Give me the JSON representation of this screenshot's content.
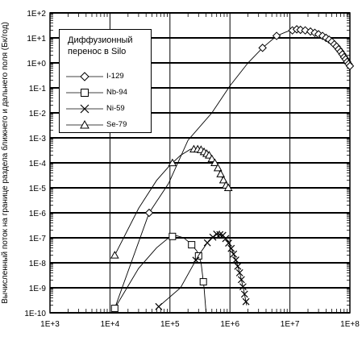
{
  "chart_data": {
    "type": "line",
    "title": "",
    "xlabel": "",
    "ylabel": "Вычисленный поток на границе раздела ближнего и дальнего поля (Бк/год)",
    "xscale": "log",
    "yscale": "log",
    "xlim": [
      1000,
      100000000
    ],
    "ylim": [
      1e-10,
      100
    ],
    "x_ticks": [
      "1E+3",
      "1E+4",
      "1E+5",
      "1E+6",
      "1E+7",
      "1E+8"
    ],
    "y_ticks": [
      "1E+2",
      "1E+1",
      "1E+0",
      "1E-1",
      "1E-2",
      "1E-3",
      "1E-4",
      "1E-5",
      "1E-6",
      "1E-7",
      "1E-8",
      "1E-9",
      "1E-10"
    ],
    "grid": "horizontal",
    "legend": {
      "title_lines": [
        "Диффузионный",
        "перенос в Silo"
      ],
      "position": "top-left"
    },
    "series": [
      {
        "name": "I-129",
        "marker": "diamond",
        "points": [
          [
            12000,
            1.5e-10
          ],
          [
            45000,
            1e-06
          ],
          [
            95000,
            1.5e-05
          ],
          [
            200000,
            0.0008
          ],
          [
            500000,
            0.01
          ],
          [
            1000000,
            0.12
          ],
          [
            2000000,
            1.0
          ],
          [
            3500000,
            4
          ],
          [
            6000000,
            12
          ],
          [
            9000000,
            18
          ],
          [
            11000000,
            20
          ],
          [
            13000000,
            22
          ],
          [
            15000000,
            21
          ],
          [
            18000000,
            20
          ],
          [
            22000000,
            18
          ],
          [
            26000000,
            16
          ],
          [
            30000000,
            14
          ],
          [
            35000000,
            12
          ],
          [
            40000000,
            10
          ],
          [
            45000000,
            8.5
          ],
          [
            50000000,
            7
          ],
          [
            55000000,
            5.5
          ],
          [
            60000000,
            4.5
          ],
          [
            65000000,
            3.5
          ],
          [
            70000000,
            2.8
          ],
          [
            75000000,
            2.2
          ],
          [
            80000000,
            1.7
          ],
          [
            85000000,
            1.4
          ],
          [
            90000000,
            1.1
          ],
          [
            95000000,
            0.9
          ],
          [
            100000000,
            0.75
          ]
        ],
        "marker_x": [
          45000,
          3500000,
          6000000,
          11000000,
          13000000,
          15000000,
          18000000,
          22000000,
          26000000,
          30000000,
          35000000,
          40000000,
          45000000,
          50000000,
          55000000,
          60000000,
          65000000,
          70000000,
          75000000,
          80000000,
          85000000,
          90000000,
          95000000,
          100000000
        ]
      },
      {
        "name": "Nb-94",
        "marker": "square",
        "points": [
          [
            12000,
            1.5e-10
          ],
          [
            30000,
            6e-09
          ],
          [
            60000,
            4e-08
          ],
          [
            100000,
            1.1e-07
          ],
          [
            130000,
            1.2e-07
          ],
          [
            170000,
            1e-07
          ],
          [
            220000,
            6e-08
          ],
          [
            280000,
            3e-08
          ],
          [
            330000,
            1e-08
          ],
          [
            370000,
            1e-09
          ],
          [
            400000,
            1e-10
          ]
        ],
        "marker_x": [
          12000,
          110000,
          230000,
          300000,
          360000
        ]
      },
      {
        "name": "Ni-59",
        "marker": "x",
        "points": [
          [
            60000,
            1.5e-10
          ],
          [
            150000,
            1e-09
          ],
          [
            300000,
            2e-08
          ],
          [
            450000,
            8e-08
          ],
          [
            600000,
            1.4e-07
          ],
          [
            750000,
            1.3e-07
          ],
          [
            900000,
            8e-08
          ],
          [
            1100000,
            3e-08
          ],
          [
            1300000,
            1e-08
          ],
          [
            1500000,
            3e-09
          ],
          [
            1700000,
            8e-10
          ],
          [
            1900000,
            2e-10
          ]
        ],
        "marker_x": [
          65000,
          270000,
          420000,
          520000,
          600000,
          680000,
          760000,
          850000,
          950000,
          1050000,
          1150000,
          1250000,
          1350000,
          1450000,
          1550000,
          1650000,
          1750000,
          1850000
        ]
      },
      {
        "name": "Se-79",
        "marker": "triangle",
        "points": [
          [
            12000,
            2e-08
          ],
          [
            30000,
            1.5e-06
          ],
          [
            60000,
            2e-05
          ],
          [
            100000,
            8e-05
          ],
          [
            150000,
            0.0002
          ],
          [
            220000,
            0.00035
          ],
          [
            320000,
            0.00035
          ],
          [
            450000,
            0.0002
          ],
          [
            600000,
            8e-05
          ],
          [
            750000,
            2.5e-05
          ],
          [
            900000,
            1e-05
          ]
        ],
        "marker_x": [
          12000,
          110000,
          250000,
          290000,
          330000,
          370000,
          410000,
          450000,
          500000,
          560000,
          630000,
          700000,
          780000,
          860000,
          940000
        ]
      }
    ],
    "annotations": []
  }
}
